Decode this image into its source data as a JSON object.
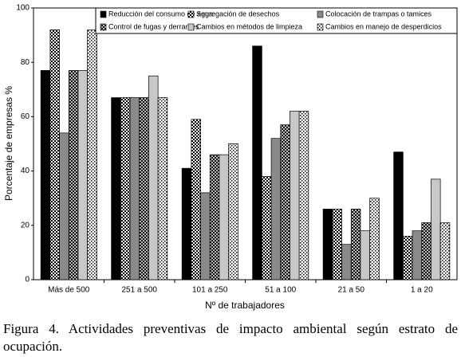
{
  "chart_data": {
    "type": "bar",
    "title": "Figura 4. Actividades preventivas de impacto ambiental según estrato de ocupación.",
    "y_label": "Porcentaje de empresas %",
    "x_label": "Nº de trabajadores",
    "categories": [
      "Más de 500",
      "251 a 500",
      "101 a 250",
      "51 a 100",
      "21 a 50",
      "1 a 20"
    ],
    "series": [
      {
        "name": "Reducción del consumo de agua",
        "color": "#000000",
        "pattern": "solid",
        "values": [
          77,
          67,
          41,
          86,
          26,
          47
        ]
      },
      {
        "name": "Segregación de desechos",
        "color": "#000000",
        "pattern": "checker",
        "values": [
          92,
          67,
          59,
          38,
          26,
          16
        ]
      },
      {
        "name": "Colocación de trampas o tamices",
        "color": "#8a8a8a",
        "pattern": "solid",
        "values": [
          54,
          67,
          32,
          52,
          13,
          18
        ]
      },
      {
        "name": "Control de fugas y derrames",
        "color": "#000000",
        "pattern": "cross",
        "values": [
          77,
          67,
          46,
          57,
          26,
          21
        ]
      },
      {
        "name": "Cambios en métodos de limpieza",
        "color": "#c8c8c8",
        "pattern": "solid",
        "values": [
          77,
          75,
          46,
          62,
          18,
          37
        ]
      },
      {
        "name": "Cambios en manejo de desperdicios",
        "color": "#000000",
        "pattern": "dots",
        "values": [
          92,
          67,
          50,
          62,
          30,
          21
        ]
      }
    ],
    "ylim": [
      0,
      100
    ],
    "yticks": [
      0,
      20,
      40,
      60,
      80,
      100
    ],
    "grid": false
  }
}
